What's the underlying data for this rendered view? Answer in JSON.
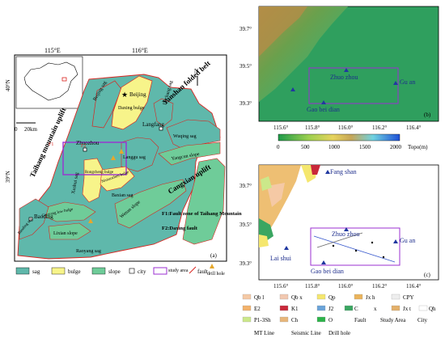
{
  "panel_a": {
    "top_ticks": [
      "115°E",
      "116°E"
    ],
    "left_ticks": [
      "40°N",
      "39°N"
    ],
    "scale_label": "20km",
    "scale_zero": "0",
    "north_label": "N",
    "panel_label": "(a)",
    "big_labels": {
      "yanshan": "Yanshan folded belt",
      "taihang": "Taihang mountain uplift",
      "cangxian": "Cangxian uplift"
    },
    "cities": [
      "Beijing",
      "Langfang",
      "Zhuozhou",
      "Baoding"
    ],
    "regions": [
      "Beijing sag",
      "Daxing bulge",
      "Dachang sag",
      "Wuqing sag",
      "Langgu sag",
      "Yangcun slope",
      "Xushui sag",
      "Rongcheng bulge",
      "Niutuozhen bulge",
      "Baxian sag",
      "Wenan slope",
      "Gaoyang low bulge",
      "Baoding sag",
      "Lixian slope",
      "Raoyang sag"
    ],
    "fault_labels": [
      "F1",
      "F2"
    ],
    "notes": [
      "F1:Fault zone of Taihang Mountain",
      "F2:Daxing fault"
    ],
    "legend": [
      "sag",
      "bulge",
      "slope",
      "city",
      "study area",
      "fault",
      "drill hole"
    ],
    "colors": {
      "sag": "#5fb8ab",
      "bulge": "#f7f48a",
      "slope": "#6fcc99",
      "fault": "#d9241f",
      "study": "#9b2fd1"
    }
  },
  "panel_b": {
    "y_ticks": [
      "39.7°",
      "39.5°",
      "39.3°"
    ],
    "x_ticks": [
      "115.6°",
      "115.8°",
      "116.0°",
      "116.2°",
      "116.4°"
    ],
    "places": [
      "Zhuo zhou",
      "Gu an",
      "Gao bei dian"
    ],
    "panel_label": "(b)",
    "colorbar_ticks": [
      "0",
      "500",
      "1000",
      "1500",
      "2000"
    ],
    "colorbar_title": "Topo(m)"
  },
  "panel_c": {
    "y_ticks": [
      "39.7°",
      "39.5°",
      "39.3°"
    ],
    "x_ticks": [
      "115.6°",
      "115.8°",
      "116.0°",
      "116.2°",
      "116.4°"
    ],
    "places": [
      "Fang shan",
      "Zhuo zhou",
      "Gu an",
      "Lai shui",
      "Gao bei dian"
    ],
    "panel_label": "(c)",
    "legend": [
      {
        "sym": "Qb l",
        "color": "#f5c9a5"
      },
      {
        "sym": "Qb x",
        "color": "#f2c8b0"
      },
      {
        "sym": "Qp",
        "color": "#f5e76e"
      },
      {
        "sym": "Jx h",
        "color": "#ebb45b"
      },
      {
        "sym": "CPY",
        "color": "#eeeeee"
      },
      {
        "sym": "E2",
        "color": "#f3b26b"
      },
      {
        "sym": "K1",
        "color": "#c9283a"
      },
      {
        "sym": "J2",
        "color": "#6aa3d9"
      },
      {
        "sym": "C",
        "color": "#3aa661"
      },
      {
        "sym": "x",
        "color": "#ffffff"
      },
      {
        "sym": "Jx t",
        "color": "#e4b06a"
      },
      {
        "sym": "Qh",
        "color": "#ffffff"
      },
      {
        "sym": "P1-3Sh",
        "color": "#cbe88a"
      },
      {
        "sym": "Ch",
        "color": "#e8b67a"
      },
      {
        "sym": "O",
        "color": "#2db34a"
      },
      {
        "sym": "Fault",
        "color": "#ffffff"
      },
      {
        "sym": "Study Area",
        "color": "#ffffff"
      },
      {
        "sym": "City",
        "color": "#ffffff"
      },
      {
        "sym": "MT Line",
        "color": "#ffffff"
      },
      {
        "sym": "Seismic Line",
        "color": "#ffffff"
      },
      {
        "sym": "Drill hole",
        "color": "#ffffff"
      }
    ]
  }
}
